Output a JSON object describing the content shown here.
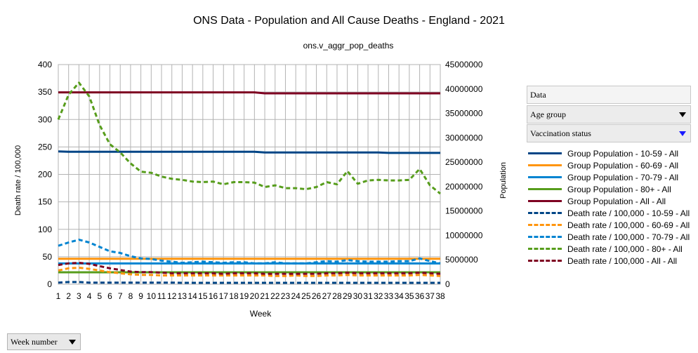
{
  "chart_data": {
    "type": "line",
    "title": "ONS Data - Population and All Cause Deaths - England - 2021",
    "subtitle": "ons.v_aggr_pop_deaths",
    "xlabel": "Week",
    "ylabel": "Death rate / 100,000",
    "y2label": "Population",
    "x": [
      1,
      2,
      3,
      4,
      5,
      6,
      7,
      8,
      9,
      10,
      11,
      12,
      13,
      14,
      15,
      16,
      17,
      18,
      19,
      20,
      21,
      22,
      23,
      24,
      25,
      26,
      27,
      28,
      29,
      30,
      31,
      32,
      33,
      34,
      35,
      36,
      37,
      38
    ],
    "xlim": [
      1,
      38
    ],
    "ylim": [
      0,
      400
    ],
    "yticks": [
      0,
      50,
      100,
      150,
      200,
      250,
      300,
      350,
      400
    ],
    "y2lim": [
      0,
      45000000
    ],
    "y2ticks": [
      0,
      5000000,
      10000000,
      15000000,
      20000000,
      25000000,
      30000000,
      35000000,
      40000000,
      45000000
    ],
    "grid": true,
    "legend_position": "right",
    "series": [
      {
        "name": "Group Population - 10-59 - All",
        "axis": "right",
        "style": "solid",
        "color": "#004586",
        "values": [
          27200000,
          27150000,
          27150000,
          27150000,
          27150000,
          27150000,
          27150000,
          27150000,
          27150000,
          27150000,
          27150000,
          27150000,
          27150000,
          27150000,
          27150000,
          27150000,
          27150000,
          27150000,
          27150000,
          27150000,
          27000000,
          27000000,
          27000000,
          27000000,
          27000000,
          27000000,
          27000000,
          27000000,
          27000000,
          27000000,
          27000000,
          27000000,
          26900000,
          26900000,
          26900000,
          26900000,
          26900000,
          26900000
        ]
      },
      {
        "name": "Group Population - 60-69 - All",
        "axis": "right",
        "style": "solid",
        "color": "#ff950e",
        "values": [
          5200000,
          5200000,
          5200000,
          5200000,
          5200000,
          5200000,
          5200000,
          5200000,
          5200000,
          5200000,
          5200000,
          5200000,
          5200000,
          5200000,
          5200000,
          5200000,
          5200000,
          5200000,
          5200000,
          5200000,
          5200000,
          5200000,
          5200000,
          5200000,
          5200000,
          5200000,
          5200000,
          5200000,
          5200000,
          5200000,
          5200000,
          5200000,
          5200000,
          5200000,
          5200000,
          5200000,
          5200000,
          5200000
        ]
      },
      {
        "name": "Group Population - 70-79 - All",
        "axis": "right",
        "style": "solid",
        "color": "#0084d1",
        "values": [
          4250000,
          4250000,
          4250000,
          4250000,
          4250000,
          4250000,
          4250000,
          4250000,
          4250000,
          4250000,
          4250000,
          4250000,
          4250000,
          4250000,
          4250000,
          4250000,
          4250000,
          4250000,
          4250000,
          4250000,
          4250000,
          4250000,
          4250000,
          4250000,
          4250000,
          4250000,
          4250000,
          4250000,
          4250000,
          4250000,
          4250000,
          4250000,
          4250000,
          4250000,
          4250000,
          4250000,
          4250000,
          4250000
        ]
      },
      {
        "name": "Group Population - 80+ - All",
        "axis": "right",
        "style": "solid",
        "color": "#579d1c",
        "values": [
          2450000,
          2450000,
          2450000,
          2450000,
          2450000,
          2450000,
          2450000,
          2450000,
          2450000,
          2450000,
          2450000,
          2450000,
          2450000,
          2450000,
          2450000,
          2450000,
          2450000,
          2450000,
          2450000,
          2450000,
          2450000,
          2450000,
          2450000,
          2450000,
          2450000,
          2450000,
          2450000,
          2450000,
          2450000,
          2450000,
          2450000,
          2450000,
          2450000,
          2450000,
          2450000,
          2450000,
          2450000,
          2450000
        ]
      },
      {
        "name": "Group Population - All - All",
        "axis": "right",
        "style": "solid",
        "color": "#7e0021",
        "values": [
          39300000,
          39300000,
          39300000,
          39300000,
          39300000,
          39300000,
          39300000,
          39300000,
          39300000,
          39300000,
          39300000,
          39300000,
          39300000,
          39300000,
          39300000,
          39300000,
          39300000,
          39300000,
          39300000,
          39300000,
          39100000,
          39100000,
          39100000,
          39100000,
          39100000,
          39100000,
          39100000,
          39100000,
          39100000,
          39100000,
          39100000,
          39100000,
          39100000,
          39100000,
          39100000,
          39100000,
          39100000,
          39100000
        ]
      },
      {
        "name": "Death rate / 100,000 - 10-59 - All",
        "axis": "left",
        "style": "dashed",
        "color": "#004586",
        "values": [
          3,
          4,
          4,
          3,
          3,
          3,
          3,
          3,
          3,
          3,
          3,
          3,
          2.5,
          2.5,
          2.5,
          2.5,
          2.5,
          2.5,
          2.5,
          2.5,
          2.5,
          2.5,
          2.5,
          2.5,
          2.5,
          2.5,
          2.5,
          2.5,
          2.5,
          2.5,
          2.5,
          2.5,
          2.5,
          2.5,
          2.5,
          2.5,
          2.5,
          2.5
        ]
      },
      {
        "name": "Death rate / 100,000 - 60-69 - All",
        "axis": "left",
        "style": "dashed",
        "color": "#ff950e",
        "values": [
          25,
          29,
          30,
          28,
          25,
          22,
          20,
          18,
          17,
          17,
          16,
          16,
          16,
          16,
          16,
          16,
          16,
          16,
          16,
          16,
          16,
          15,
          15,
          16,
          15,
          15,
          16,
          16,
          17,
          16,
          16,
          16,
          16,
          16,
          16,
          17,
          16,
          15
        ]
      },
      {
        "name": "Death rate / 100,000 - 70-79 - All",
        "axis": "left",
        "style": "dashed",
        "color": "#0084d1",
        "values": [
          70,
          76,
          81,
          76,
          68,
          60,
          57,
          51,
          47,
          46,
          43,
          41,
          39,
          40,
          41,
          40,
          39,
          40,
          40,
          38,
          38,
          40,
          38,
          38,
          38,
          40,
          42,
          41,
          44,
          42,
          41,
          41,
          41,
          42,
          42,
          47,
          42,
          38
        ]
      },
      {
        "name": "Death rate / 100,000 - 80+ - All",
        "axis": "left",
        "style": "dashed",
        "color": "#579d1c",
        "values": [
          300,
          345,
          367,
          342,
          290,
          255,
          240,
          220,
          205,
          203,
          196,
          192,
          190,
          187,
          186,
          187,
          182,
          186,
          186,
          185,
          177,
          180,
          175,
          175,
          173,
          177,
          186,
          182,
          206,
          183,
          189,
          190,
          189,
          189,
          190,
          210,
          180,
          165
        ]
      },
      {
        "name": "Death rate / 100,000 - All - All",
        "axis": "left",
        "style": "dashed",
        "color": "#7e0021",
        "values": [
          35,
          38,
          39,
          37,
          33,
          29,
          26,
          23,
          22,
          22,
          21,
          20,
          20,
          20,
          20,
          20,
          19,
          20,
          20,
          20,
          19,
          19,
          19,
          19,
          19,
          19,
          20,
          20,
          21,
          20,
          20,
          20,
          20,
          20,
          20,
          21,
          20,
          19
        ]
      }
    ]
  },
  "filters": {
    "data_label": "Data",
    "age_group_label": "Age group",
    "vaccination_label": "Vaccination status",
    "week_number_label": "Week number"
  }
}
